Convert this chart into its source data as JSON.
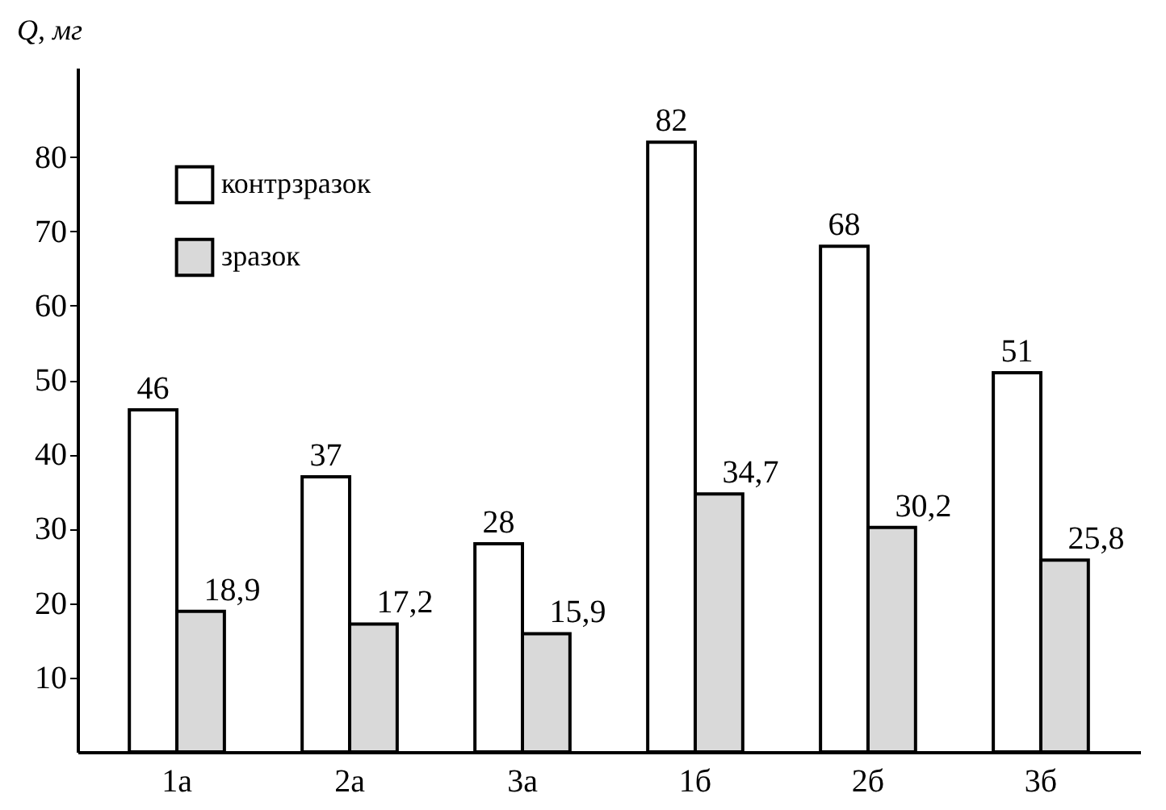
{
  "chart_data": {
    "type": "bar",
    "ylabel": "Q, мг",
    "categories": [
      "1а",
      "2а",
      "3а",
      "1б",
      "2б",
      "3б"
    ],
    "series": [
      {
        "name": "контрзразок",
        "color": "#ffffff",
        "values": [
          46,
          37,
          28,
          82,
          68,
          51
        ],
        "value_labels": [
          "46",
          "37",
          "28",
          "82",
          "68",
          "51"
        ]
      },
      {
        "name": "зразок",
        "color": "#d9d9d9",
        "values": [
          18.9,
          17.2,
          15.9,
          34.7,
          30.2,
          25.8
        ],
        "value_labels": [
          "18,9",
          "17,2",
          "15,9",
          "34,7",
          "30,2",
          "25,8"
        ]
      }
    ],
    "ylim": [
      0,
      92
    ],
    "yticks": [
      10,
      20,
      30,
      40,
      50,
      60,
      70,
      80
    ],
    "grid": false,
    "legend": "top left"
  }
}
